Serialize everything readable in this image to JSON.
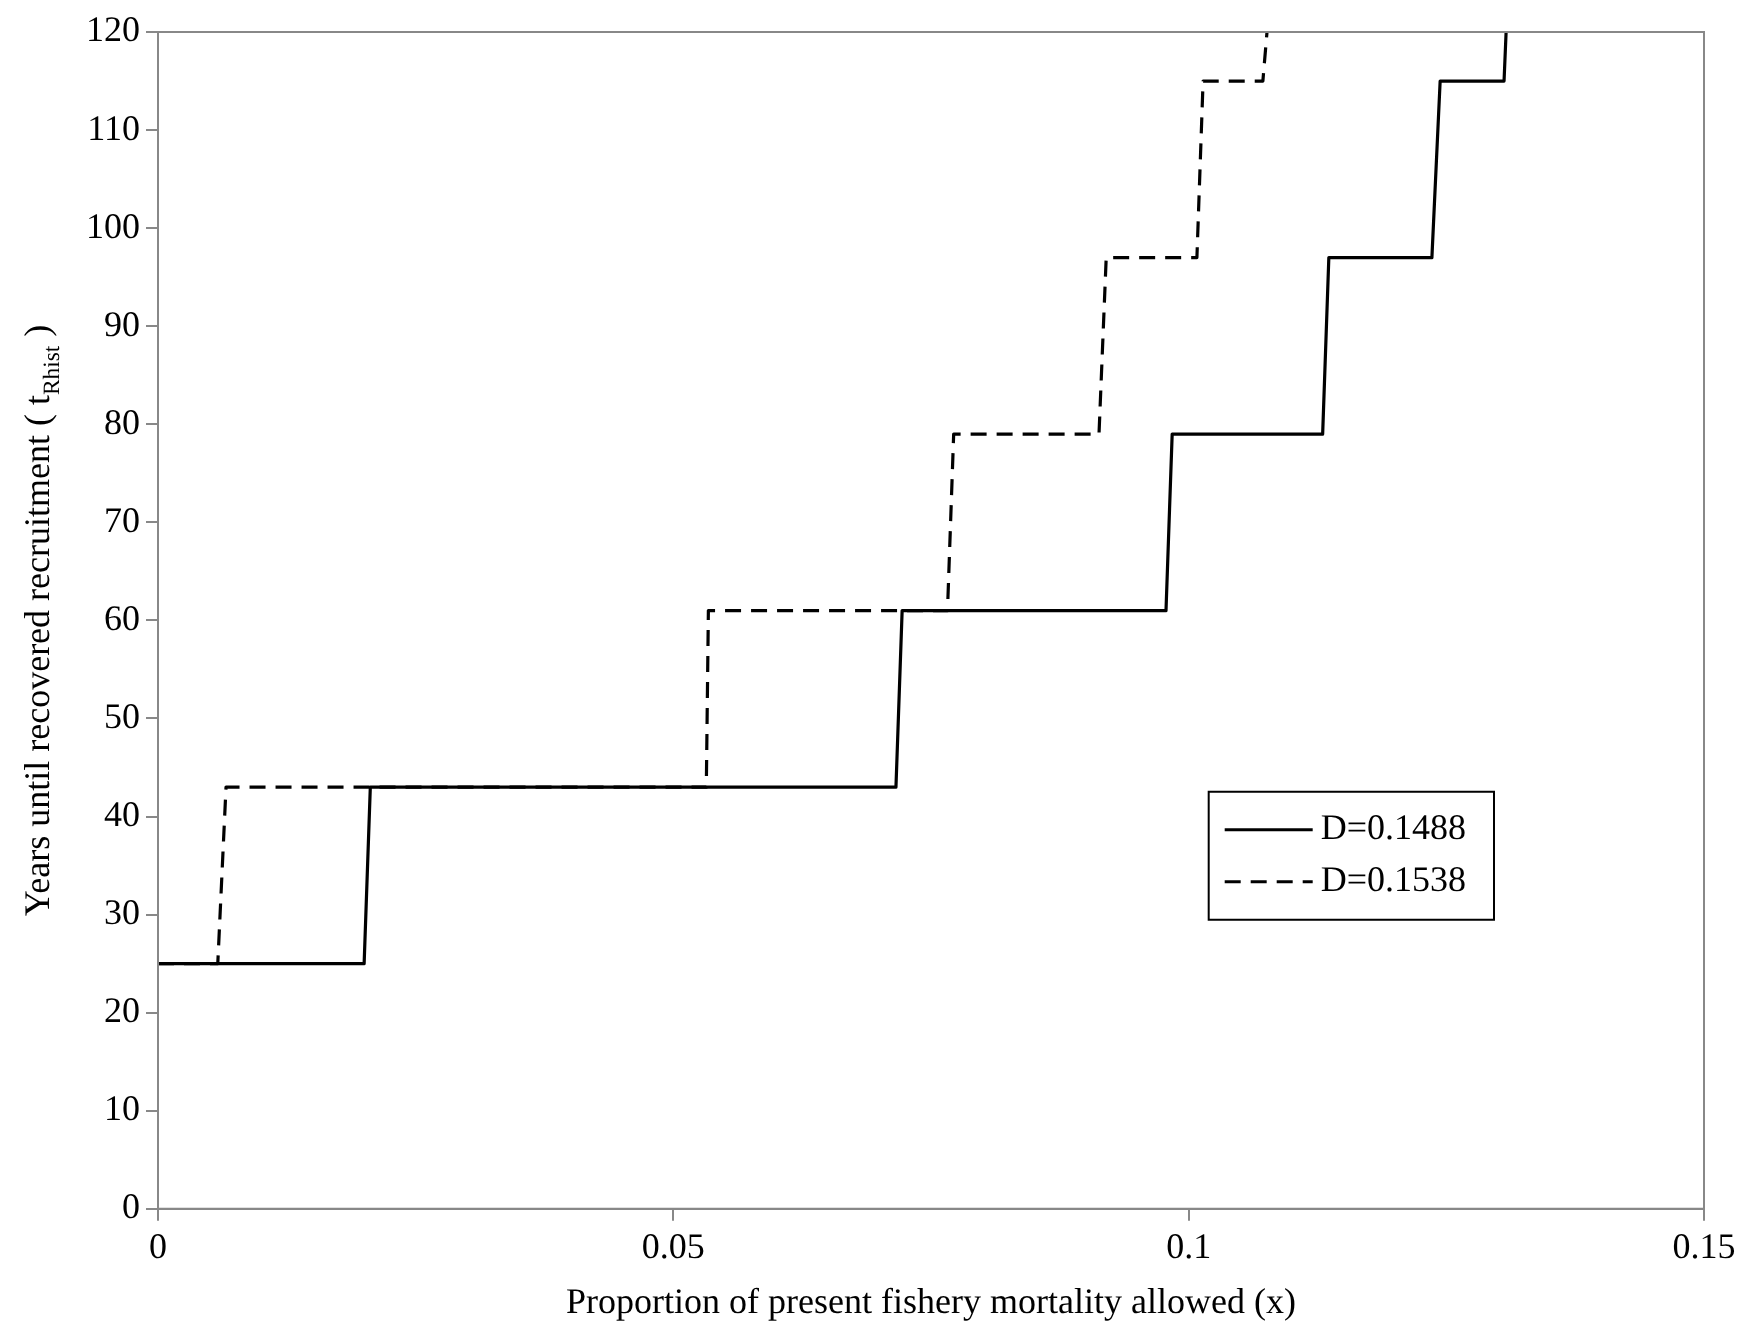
{
  "chart_data": {
    "type": "line",
    "xlabel": "Proportion of present fishery mortality allowed (x)",
    "ylabel": "Years until recovered recruitment ( t$_{Rhist}$ )",
    "xlim": [
      0,
      0.15
    ],
    "xticks": [
      0,
      0.05,
      0.1,
      0.15
    ],
    "ylim": [
      0,
      120
    ],
    "yticks": [
      0,
      10,
      20,
      30,
      40,
      50,
      60,
      70,
      80,
      90,
      100,
      110,
      120
    ],
    "grid": false,
    "legend": "right",
    "marker": "none",
    "series": [
      {
        "name": "D=0.1488",
        "color": "#000000",
        "line_style": "solid",
        "x": [
          0,
          0.02,
          0.0206,
          0.0716,
          0.0722,
          0.0978,
          0.0984,
          0.113,
          0.1136,
          0.1236,
          0.1244,
          0.1306,
          0.1308
        ],
        "values": [
          25,
          25,
          43,
          43,
          61,
          61,
          79,
          79,
          97,
          97,
          115,
          115,
          120
        ]
      },
      {
        "name": "D=0.1538",
        "color": "#000000",
        "line_style": "dashed",
        "x": [
          0,
          0.0058,
          0.0066,
          0.0532,
          0.0534,
          0.0766,
          0.0772,
          0.0913,
          0.092,
          0.1008,
          0.1014,
          0.1072,
          0.1076
        ],
        "values": [
          25,
          25,
          43,
          43,
          61,
          61,
          79,
          79,
          97,
          97,
          115,
          115,
          120
        ]
      }
    ]
  }
}
